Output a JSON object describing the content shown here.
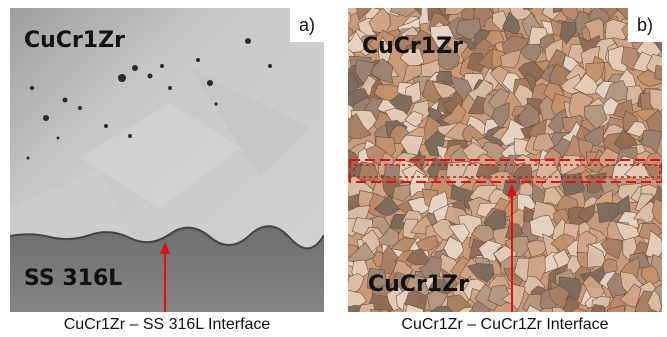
{
  "panel_a": {
    "label": "a)",
    "material_top": "CuCr1Zr",
    "material_bottom": "SS 316L",
    "caption": "CuCr1Zr – SS 316L Interface",
    "colors": {
      "copper": "#c8c8c8",
      "steel": "#7a7a7a",
      "arrow": "#e01010"
    }
  },
  "panel_b": {
    "label": "b)",
    "material_top": "CuCr1Zr",
    "material_bottom": "CuCr1Zr",
    "caption": "CuCr1Zr – CuCr1Zr Interface",
    "colors": {
      "grain_base": "#c79a7a",
      "dashed_box": "#e01010",
      "arrow": "#e01010"
    }
  }
}
